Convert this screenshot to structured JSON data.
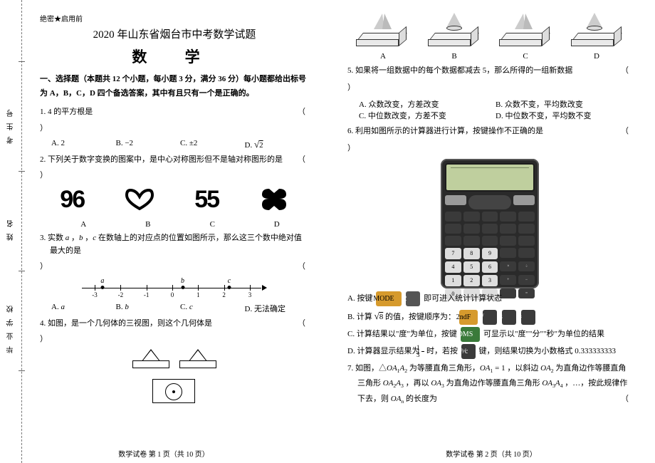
{
  "secret": "绝密★启用前",
  "title": "2020 年山东省烟台市中考数学试题",
  "subject": "数 学",
  "section1": "一、选择题（本题共 12 个小题，每小题 3 分，满分 36 分）每小题都给出标号为 A，B，C，D 四个备选答案，其中有且只有一个是正确的。",
  "q1": {
    "text": "1. 4 的平方根是",
    "paren": "（",
    "close": "）",
    "opts": {
      "a": "A. 2",
      "b": "B. −2",
      "c": "C. ±2",
      "d": "D. √2̅"
    }
  },
  "q2": {
    "text": "2. 下列关于数字变换的图案中，是中心对称图形但不是轴对称图形的是",
    "paren": "（",
    "close": "）",
    "glyphs": {
      "a": "96",
      "b": "♡",
      "c": "55",
      "d": "ᔕ"
    },
    "labels": {
      "a": "A",
      "b": "B",
      "c": "C",
      "d": "D"
    }
  },
  "q3": {
    "text": "3. 实数 a ，b ，c 在数轴上的对应点的位置如图所示，那么这三个数中绝对值最大的是",
    "paren": "（",
    "close": "）",
    "ticks": [
      "-3",
      "-2",
      "-1",
      "0",
      "1",
      "2",
      "3"
    ],
    "dots": {
      "a": -2.7,
      "b": 0.4,
      "c": 2.2
    },
    "opts": {
      "a": "A. a",
      "b": "B. b",
      "c": "C. c",
      "d": "D. 无法确定"
    }
  },
  "q4": {
    "text": "4. 如图，是一个几何体的三视图，则这个几何体是",
    "paren": "（",
    "close": "）"
  },
  "p2labels": {
    "a": "A",
    "b": "B",
    "c": "C",
    "d": "D"
  },
  "q5": {
    "text": "5. 如果将一组数据中的每个数据都减去 5，那么所得的一组新数据",
    "paren": "（",
    "close": "）",
    "opts": {
      "a": "A. 众数改变，方差改变",
      "b": "B. 众数不变，平均数改变",
      "c": "C. 中位数改变，方差不变",
      "d": "D. 中位数不变，平均数不变"
    }
  },
  "q6": {
    "text": "6. 利用如图所示的计算器进行计算，按键操作不正确的是",
    "paren": "（",
    "close": "）",
    "optA_pre": "A. 按键",
    "optA_k1": "MODE",
    "optA_k2": "2",
    "optA_post": "即可进入统计计算状态",
    "optB_pre": "B. 计算 √8̅ 的值，按键顺序为：",
    "optB_k1": "2ndF",
    "optB_k2": "√",
    "optB_k3": "8",
    "optB_k4": "=",
    "optC_pre": "C. 计算结果以\"度\"为单位，按键",
    "optC_k": "DMS",
    "optC_post": "可显示以\"度\"\"分\"\"秒\"为单位的结果",
    "optD_pre": "D. 计算器显示结果为 ",
    "optD_frac_n": "1",
    "optD_frac_d": "3",
    "optD_mid": " 时，若按",
    "optD_k": "aᵇ⁄c",
    "optD_post": "键，则结果切换为小数格式 0.333333333"
  },
  "q7": {
    "text": "7. 如图，△OA₁A₂ 为等腰直角三角形，OA₁ = 1 ，以斜边 OA₂ 为直角边作等腰直角三角形 OA₂A₃ ，再以 OA₃ 为直角边作等腰直角三角形 OA₃A₄ ，…，按此规律作下去，则 OAₙ 的长度为",
    "paren": "（"
  },
  "footer": {
    "left": "数学试卷  第 1 页（共 10 页）",
    "right": "数学试卷  第 2 页（共 10 页）"
  },
  "numline": {
    "start": -3,
    "end": 3,
    "pxstart": 18,
    "pxend": 236
  },
  "colors": {
    "bg": "#ffffff",
    "text": "#000000",
    "calc_body": "#2a2a2a",
    "calc_screen": "#bfcf9e",
    "kc_yellow": "#d69a2d",
    "kc_dark": "#3b3b3b",
    "kc_green": "#3a7a3a"
  }
}
